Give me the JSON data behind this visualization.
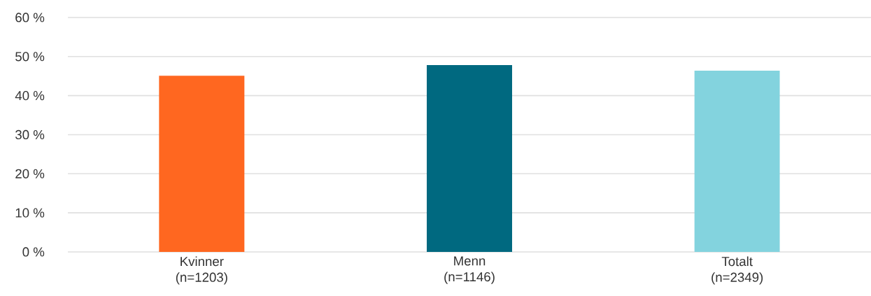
{
  "chart_data": {
    "type": "bar",
    "categories": [
      "Kvinner (n=1203)",
      "Menn (n=1146)",
      "Totalt (n=2349)"
    ],
    "values": [
      45.1,
      47.8,
      46.4
    ],
    "colors": [
      "#ff6720",
      "#006980",
      "#83d3de"
    ],
    "ylim": [
      0,
      60
    ],
    "yticks": [
      {
        "value": 0,
        "label": "0 %"
      },
      {
        "value": 10,
        "label": "10 %"
      },
      {
        "value": 20,
        "label": "20 %"
      },
      {
        "value": 30,
        "label": "30 %"
      },
      {
        "value": 40,
        "label": "40 %"
      },
      {
        "value": 50,
        "label": "50 %"
      },
      {
        "value": 60,
        "label": "60 %"
      }
    ],
    "grid": "y"
  }
}
